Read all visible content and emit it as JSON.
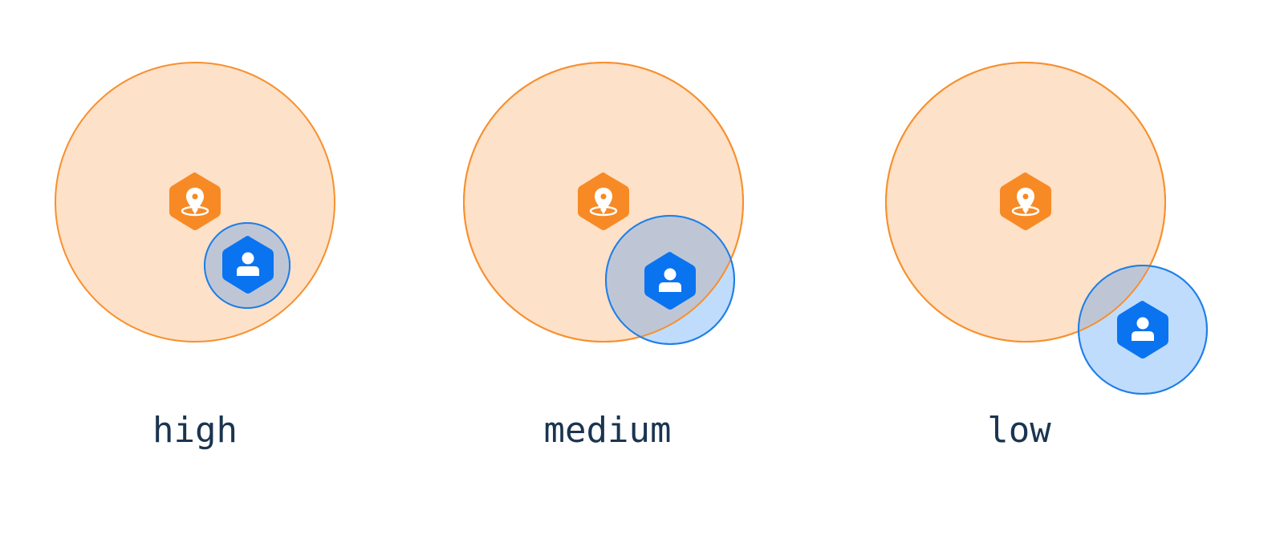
{
  "colors": {
    "location_fill": "#fde1c8",
    "location_stroke": "#f7902e",
    "location_icon": "#f78a25",
    "user_fill": "#bfdcfc",
    "user_overlap_fill": "#bec6d6",
    "user_stroke": "#1f7fe8",
    "user_icon": "#0a73f0",
    "label_text": "#1b3550",
    "glyph": "#ffffff"
  },
  "icons": {
    "location": "location-pin-icon",
    "user": "user-icon"
  },
  "panels": [
    {
      "id": "high",
      "label": "high"
    },
    {
      "id": "medium",
      "label": "medium"
    },
    {
      "id": "low",
      "label": "low"
    }
  ]
}
